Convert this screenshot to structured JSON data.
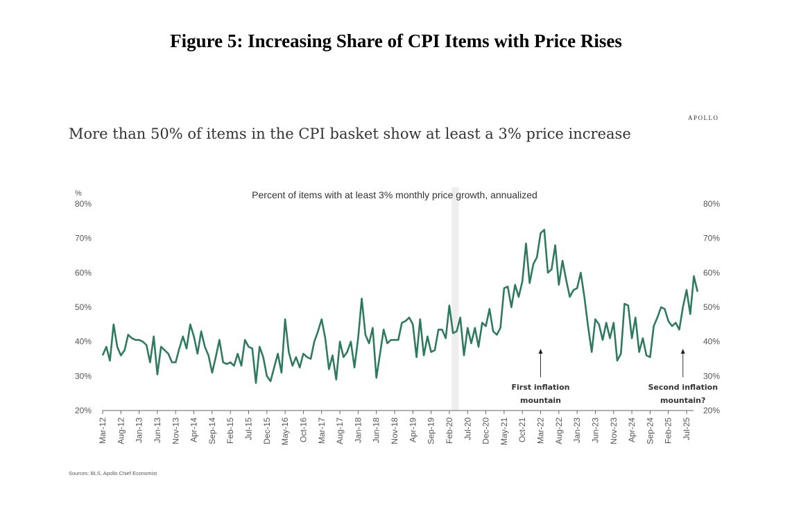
{
  "figure_title": "Figure 5: Increasing Share of CPI Items with Price Rises",
  "brand": "APOLLO",
  "headline": "More than 50% of items in the CPI basket show at least a 3% price increase",
  "sources": "Sources: BLS, Apollo Chief Economist",
  "colors": {
    "line": "#2e7a5f",
    "shade": "#eeeeee",
    "axis": "#555555"
  },
  "chart_data": {
    "type": "line",
    "title": "Percent of items with at least 3% monthly price growth, annualized",
    "ylabel": "%",
    "ylim": [
      20,
      80
    ],
    "yticks": [
      "20%",
      "30%",
      "40%",
      "50%",
      "60%",
      "70%",
      "80%"
    ],
    "yticks_right": [
      "20%",
      "30%",
      "40%",
      "50%",
      "60%",
      "70%",
      "80%"
    ],
    "grid": false,
    "x_start": "Mar-12",
    "x_frequency": "monthly",
    "xtick_labels": [
      "Mar-12",
      "Aug-12",
      "Jan-13",
      "Jun-13",
      "Nov-13",
      "Apr-14",
      "Sep-14",
      "Feb-15",
      "Jul-15",
      "Dec-15",
      "May-16",
      "Oct-16",
      "Mar-17",
      "Aug-17",
      "Jan-18",
      "Jun-18",
      "Nov-18",
      "Apr-19",
      "Sep-19",
      "Feb-20",
      "Jul-20",
      "Dec-20",
      "May-21",
      "Oct-21",
      "Mar-22",
      "Aug-22",
      "Jan-23",
      "Jun-23",
      "Nov-23",
      "Apr-24",
      "Sep-24",
      "Feb-25",
      "Jul-25"
    ],
    "shaded_period": {
      "start": "Mar-20",
      "end": "Apr-20"
    },
    "annotations": [
      {
        "text_line1": "First inflation",
        "text_line2": "mountain",
        "at": "Mar-22"
      },
      {
        "text_line1": "Second inflation",
        "text_line2": "mountain?",
        "at": "Jun-25"
      }
    ],
    "series": [
      {
        "name": "Percent of items with at least 3% monthly price growth, annualized",
        "values": [
          36,
          38.5,
          34.5,
          45,
          38.5,
          36,
          37.5,
          42,
          41,
          40.5,
          40.5,
          40,
          39,
          34,
          41.5,
          30.5,
          38.5,
          37.5,
          36.5,
          34,
          34,
          38,
          41.5,
          38,
          45,
          41.5,
          36.5,
          43,
          38.5,
          36,
          31,
          35.5,
          40.5,
          34,
          33.5,
          34,
          33,
          36.5,
          33,
          40.5,
          38.5,
          38,
          28,
          38.5,
          35.5,
          30,
          28.5,
          32.5,
          36.5,
          31,
          46.5,
          37,
          33,
          35.5,
          32.5,
          36.5,
          35.5,
          35,
          40,
          43,
          46.5,
          41,
          32,
          36,
          29,
          40,
          35.5,
          37,
          40,
          32.5,
          41,
          52.5,
          42,
          39.5,
          44,
          29.5,
          36.5,
          43.5,
          39.5,
          40.5,
          40.5,
          40.5,
          45.5,
          46,
          47,
          45,
          35.5,
          46.5,
          36,
          41.5,
          37,
          37.5,
          43.5,
          43.5,
          41,
          50.5,
          42.5,
          43,
          47,
          36,
          44,
          39.5,
          44,
          38.5,
          45.5,
          44.5,
          49.5,
          43,
          42,
          44,
          55.5,
          56,
          50,
          56.5,
          53,
          57.5,
          68.5,
          57,
          62.5,
          64.5,
          71.5,
          72.5,
          60,
          61,
          68,
          56.5,
          63.5,
          58,
          53,
          55,
          55.5,
          60,
          53,
          44.5,
          37,
          46.5,
          45,
          40.5,
          45.5,
          41,
          45.5,
          34.5,
          36.5,
          51,
          50.5,
          41,
          47,
          37,
          41,
          36,
          35.5,
          44.5,
          47,
          50,
          49.5,
          46,
          44.5,
          45.5,
          43.5,
          50,
          55,
          48,
          59,
          54.5
        ]
      }
    ]
  }
}
